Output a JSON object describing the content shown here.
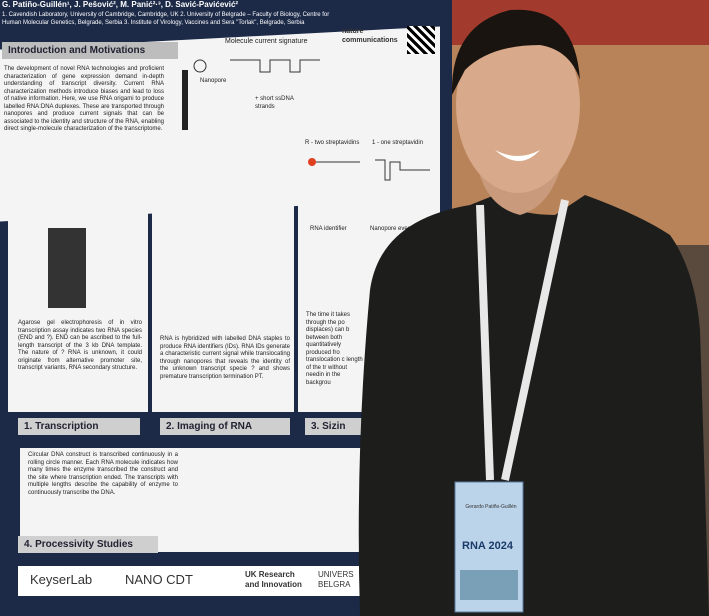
{
  "poster": {
    "authors": "G. Patiño-Guillén¹, J. Pešović², M. Panić²·³, D. Savić-Pavićević²",
    "affiliations": "1. Cavendish Laboratory, University of Cambridge, Cambridge, UK 2. University of Belgrade – Faculty of Biology, Centre for Human Molecular Genetics, Belgrade, Serbia 3. Institute of Virology, Vaccines and Sera \"Torlak\", Belgrade, Serbia",
    "intro": {
      "title": "Introduction and Motivations",
      "text": "The development of novel RNA technologies and proficient characterization of gene expression demand in-depth understanding of transcript diversity. Current RNA characterization methods introduce biases and lead to loss of native information. Here, we use RNA origami to produce labelled RNA:DNA duplexes. These are transported through nanopores and produce current signals that can be associated to the identity and structure of the RNA, enabling direct single-molecule characterization of the transcriptome.",
      "figure_title": "Molecule current signature",
      "nanopore": "Nanopore",
      "strands": "+ short ssDNA strands"
    },
    "journal": "nature communications",
    "panels": {
      "gel_text": "Agarose gel electrophoresis of in vitro transcription assay indicates two RNA species (END and ?). END can be ascribed to the full-length transcript of the 3 kb DNA template. The nature of ? RNA is unknown, it could originate from alternative promoter site, transcript variants, RNA secondary structure.",
      "imaging_text": "RNA is hybridized with labelled DNA staples to produce RNA identifiers (IDs). RNA IDs generate a characteristic current signal while translocating through nanopores that reveals the identity of the unknown transcript specie ? and shows premature transcription termination PT.",
      "streptavidin_two": "R - two streptavidins",
      "streptavidin_one": "1 - one streptavidin",
      "rna_identifier": "RNA identifier",
      "nanopore_event": "Nanopore event",
      "sizing_text": "The time it takes through the po displaces) can b between both quantitatively produced fro translocation c length of the tr without needin in the backgrou",
      "processivity_text": "Circular DNA construct is transcribed continuously in a rolling circle manner. Each RNA molecule indicates how many times the enzyme transcribed the construct and the site where transcription ended. The transcripts with multiple lengths describe the capability of enzyme to continuously transcribe the DNA."
    },
    "sections": [
      "1. Transcription",
      "2. Imaging of RNA",
      "3. Sizin",
      "4. Processivity Studies"
    ],
    "logos": [
      "KeyserLab",
      "NANO CDT",
      "UK Research and Innovation",
      "UNIVERS BELGRA"
    ]
  },
  "badge": {
    "event": "RNA 2024",
    "name": "Gerardo Patiño-Guillén"
  }
}
